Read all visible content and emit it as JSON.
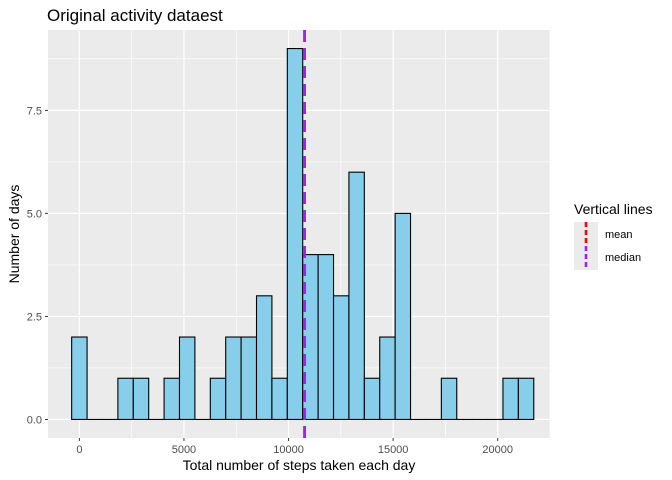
{
  "chart_data": {
    "type": "bar",
    "title": "Original activity dataest",
    "xlabel": "Total number of steps taken each day",
    "ylabel": "Number of days",
    "xlim": [
      -1500,
      22500
    ],
    "ylim": [
      -0.45,
      9.45
    ],
    "x_ticks": [
      0,
      5000,
      10000,
      15000,
      20000
    ],
    "x_tick_labels": [
      "0",
      "5000",
      "10000",
      "15000",
      "20000"
    ],
    "y_ticks": [
      0,
      2.5,
      5,
      7.5
    ],
    "y_tick_labels": [
      "0.0",
      "2.5",
      "5.0",
      "7.5"
    ],
    "bin_width": 736.4,
    "bin_centers": [
      0,
      736,
      1473,
      2209,
      2946,
      3682,
      4418,
      5155,
      5891,
      6628,
      7364,
      8100,
      8837,
      9573,
      10310,
      11046,
      11782,
      12519,
      13255,
      13992,
      14728,
      15464,
      16201,
      16937,
      17674,
      18410,
      19146,
      19883,
      20619,
      21356
    ],
    "counts": [
      2,
      0,
      0,
      1,
      1,
      0,
      1,
      2,
      0,
      1,
      2,
      2,
      3,
      1,
      9,
      4,
      4,
      3,
      6,
      1,
      2,
      5,
      0,
      0,
      1,
      0,
      0,
      0,
      1,
      1
    ],
    "bar_fill": "#87ceeb",
    "bar_stroke": "#000000",
    "grid": true,
    "vlines": [
      {
        "name": "mean",
        "value": 10766,
        "color": "#ff0000",
        "linetype": "dashed"
      },
      {
        "name": "median",
        "value": 10765,
        "color": "#a020f0",
        "linetype": "dashed"
      }
    ],
    "legend": {
      "title": "Vertical lines",
      "placement": "right",
      "entries": [
        "mean",
        "median"
      ]
    }
  }
}
